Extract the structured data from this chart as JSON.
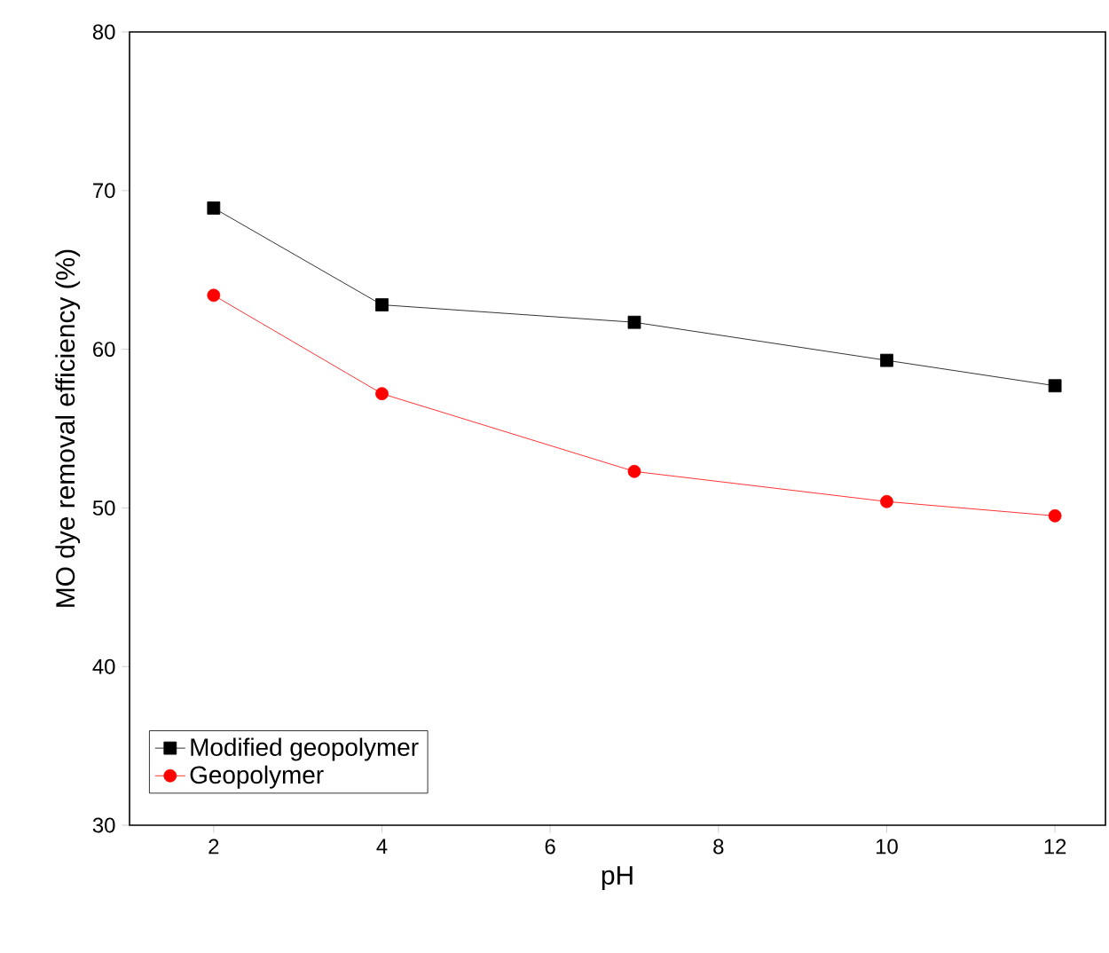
{
  "chart_data": {
    "type": "line",
    "xlabel": "pH",
    "ylabel": "MO dye removal efficiency (%)",
    "x": [
      2,
      4,
      7,
      10,
      12
    ],
    "series": [
      {
        "name": "Modified geopolymer",
        "color": "#000000",
        "marker": "square",
        "values": [
          68.9,
          62.8,
          61.7,
          59.3,
          57.7
        ]
      },
      {
        "name": "Geopolymer",
        "color": "#ff0000",
        "marker": "circle",
        "values": [
          63.4,
          57.2,
          52.3,
          50.4,
          49.5
        ]
      }
    ],
    "xlim": [
      1,
      12.6
    ],
    "ylim": [
      30,
      80
    ],
    "xticks": [
      2,
      4,
      6,
      8,
      10,
      12
    ],
    "yticks": [
      30,
      40,
      50,
      60,
      70,
      80
    ],
    "legend": "bottom left",
    "grid": false,
    "line_style": "solid"
  }
}
